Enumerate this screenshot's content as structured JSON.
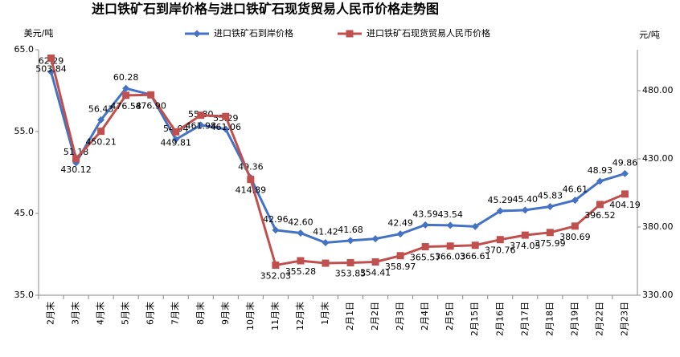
{
  "chart_data": {
    "type": "line",
    "title": "进口铁矿石到岸价格与进口铁矿石现货贸易人民币价格走势图",
    "y_label": "美元/吨",
    "y2_label": "元/吨",
    "categories": [
      "2月末",
      "3月末",
      "4月末",
      "5月末",
      "6月末",
      "7月末",
      "8月末",
      "9月末",
      "10月末",
      "11月末",
      "12月末",
      "1月末",
      "2月1日",
      "2月2日",
      "2月3日",
      "2月4日",
      "2月5日",
      "2月15日",
      "2月16日",
      "2月17日",
      "2月18日",
      "2月19日",
      "2月22日",
      "2月23日"
    ],
    "series": [
      {
        "name": "进口铁矿石到岸价格",
        "color": "#4472c4",
        "marker": "diamond",
        "values": [
          62.29,
          51.18,
          56.43,
          60.28,
          59.5,
          54.04,
          55.8,
          55.29,
          49.36,
          42.96,
          42.6,
          41.42,
          41.68,
          41.9,
          42.49,
          43.59,
          43.54,
          43.4,
          45.29,
          45.4,
          45.83,
          46.61,
          48.93,
          49.86
        ],
        "value_labels": [
          "62.29",
          "51.18",
          "56.43",
          "60.28",
          null,
          "54.04",
          "55.80",
          "55.29",
          "49.36",
          "42.96",
          "42.60",
          "41.42",
          "41.68",
          null,
          "42.49",
          "43.59",
          "43.54",
          null,
          "45.29",
          "45.40",
          "45.83",
          "46.61",
          "48.93",
          "49.86"
        ]
      },
      {
        "name": "进口铁矿石现货贸易人民币价格",
        "color": "#c0504d",
        "marker": "square",
        "axis": "y2",
        "values": [
          503.84,
          430.12,
          450.21,
          476.58,
          476.9,
          449.81,
          461.98,
          461.06,
          414.89,
          352.03,
          355.28,
          353.5,
          353.85,
          354.41,
          358.97,
          365.57,
          366.03,
          366.61,
          370.76,
          374.05,
          375.99,
          380.69,
          396.52,
          404.19
        ],
        "value_labels": [
          "503.84",
          "430.12",
          "450.21",
          "476.58",
          "476.90",
          "449.81",
          "461.98",
          "461.06",
          "414.89",
          "352.03",
          "355.28",
          null,
          "353.85",
          "354.41",
          "358.97",
          "365.57",
          "366.03",
          "366.61",
          "370.76",
          "374.05",
          "375.99",
          "380.69",
          "396.52",
          "404.19"
        ]
      }
    ],
    "ylim": [
      35,
      65
    ],
    "yticks": [
      {
        "value": 35,
        "label": "35.0"
      },
      {
        "value": 45,
        "label": "45.0"
      },
      {
        "value": 55,
        "label": "55.0"
      },
      {
        "value": 65,
        "label": "65.0"
      }
    ],
    "y2lim": [
      330,
      510
    ],
    "y2ticks": [
      {
        "value": 330,
        "label": "330.00"
      },
      {
        "value": 380,
        "label": "380.00"
      },
      {
        "value": 430,
        "label": "430.00"
      },
      {
        "value": 480,
        "label": "480.00"
      }
    ],
    "legend": "top"
  }
}
